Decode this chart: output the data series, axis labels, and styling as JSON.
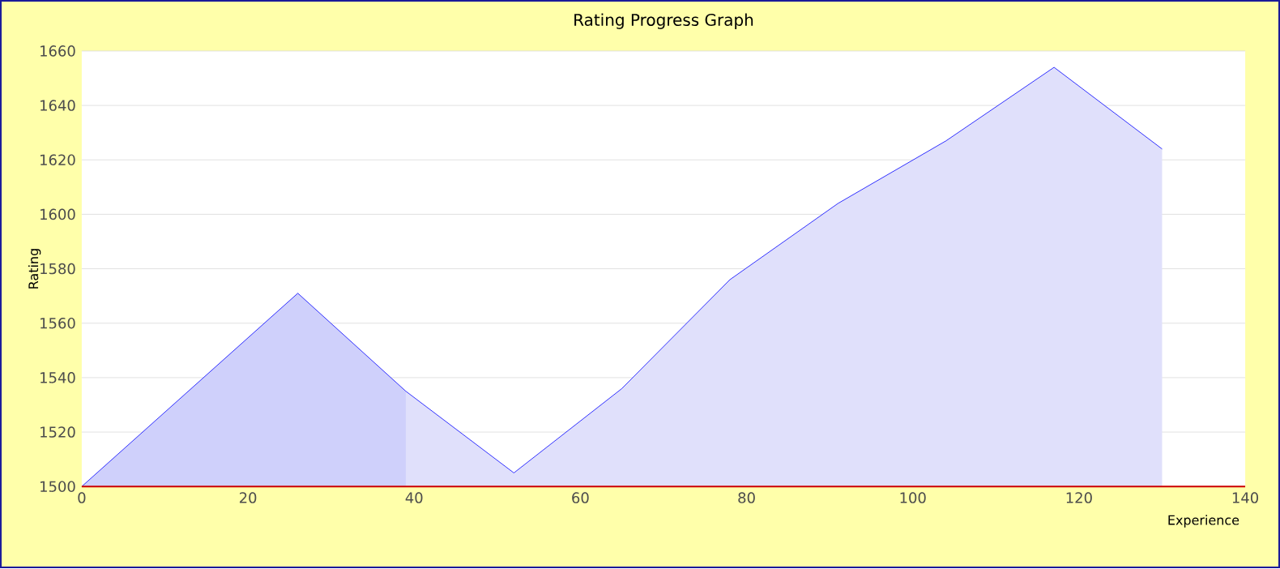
{
  "chart_data": {
    "type": "area",
    "title": "Rating Progress Graph",
    "xlabel": "Experience",
    "ylabel": "Rating",
    "xlim": [
      0,
      140
    ],
    "ylim": [
      1500,
      1660
    ],
    "xticks": [
      0,
      20,
      40,
      60,
      80,
      100,
      120,
      140
    ],
    "yticks": [
      1500,
      1520,
      1540,
      1560,
      1580,
      1600,
      1620,
      1640,
      1660
    ],
    "grid": "y",
    "series": [
      {
        "color": "#cfd0fb",
        "x": [
          0,
          26,
          39
        ],
        "values": [
          1500,
          1571,
          1535
        ]
      },
      {
        "color": "#e0e0fb",
        "x": [
          39,
          52,
          65,
          78,
          91,
          104,
          117,
          130
        ],
        "values": [
          1535,
          1505,
          1536,
          1576,
          1604,
          1627,
          1654,
          1624
        ]
      }
    ]
  }
}
